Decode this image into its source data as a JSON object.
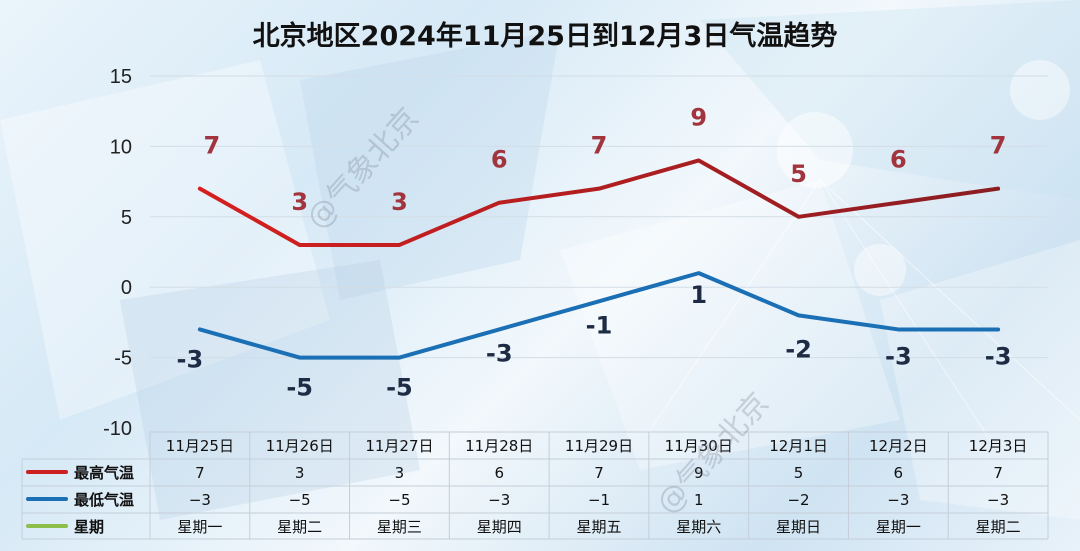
{
  "chart_data": {
    "type": "line",
    "title": "北京地区2024年11月25日到12月3日气温趋势",
    "categories": [
      "11月25日",
      "11月26日",
      "11月27日",
      "11月28日",
      "11月29日",
      "11月30日",
      "12月1日",
      "12月2日",
      "12月3日"
    ],
    "y_ticks": [
      "15",
      "10",
      "5",
      "0",
      "-5",
      "-10"
    ],
    "ylim": [
      -10,
      15
    ],
    "grid": true,
    "series": [
      {
        "name": "最高气温",
        "color": "#cc1f1f",
        "values": [
          7,
          3,
          3,
          6,
          7,
          9,
          5,
          6,
          7
        ],
        "data_labels": [
          "7",
          "3",
          "3",
          "6",
          "7",
          "9",
          "5",
          "6",
          "7"
        ],
        "table_values": [
          "7",
          "3",
          "3",
          "6",
          "7",
          "9",
          "5",
          "6",
          "7"
        ]
      },
      {
        "name": "最低气温",
        "color": "#1a6fb5",
        "values": [
          -3,
          -5,
          -5,
          -3,
          -1,
          1,
          -2,
          -3,
          -3
        ],
        "data_labels": [
          "-3",
          "-5",
          "-5",
          "-3",
          "-1",
          "1",
          "-2",
          "-3",
          "-3"
        ],
        "table_values": [
          "−3",
          "−5",
          "−5",
          "−3",
          "−1",
          "1",
          "−2",
          "−3",
          "−3"
        ]
      }
    ],
    "weekday_row": {
      "name": "星期",
      "color": "#8cbf4a",
      "values": [
        "星期一",
        "星期二",
        "星期三",
        "星期四",
        "星期五",
        "星期六",
        "星期日",
        "星期一",
        "星期二"
      ]
    }
  },
  "watermark": "@气象北京"
}
